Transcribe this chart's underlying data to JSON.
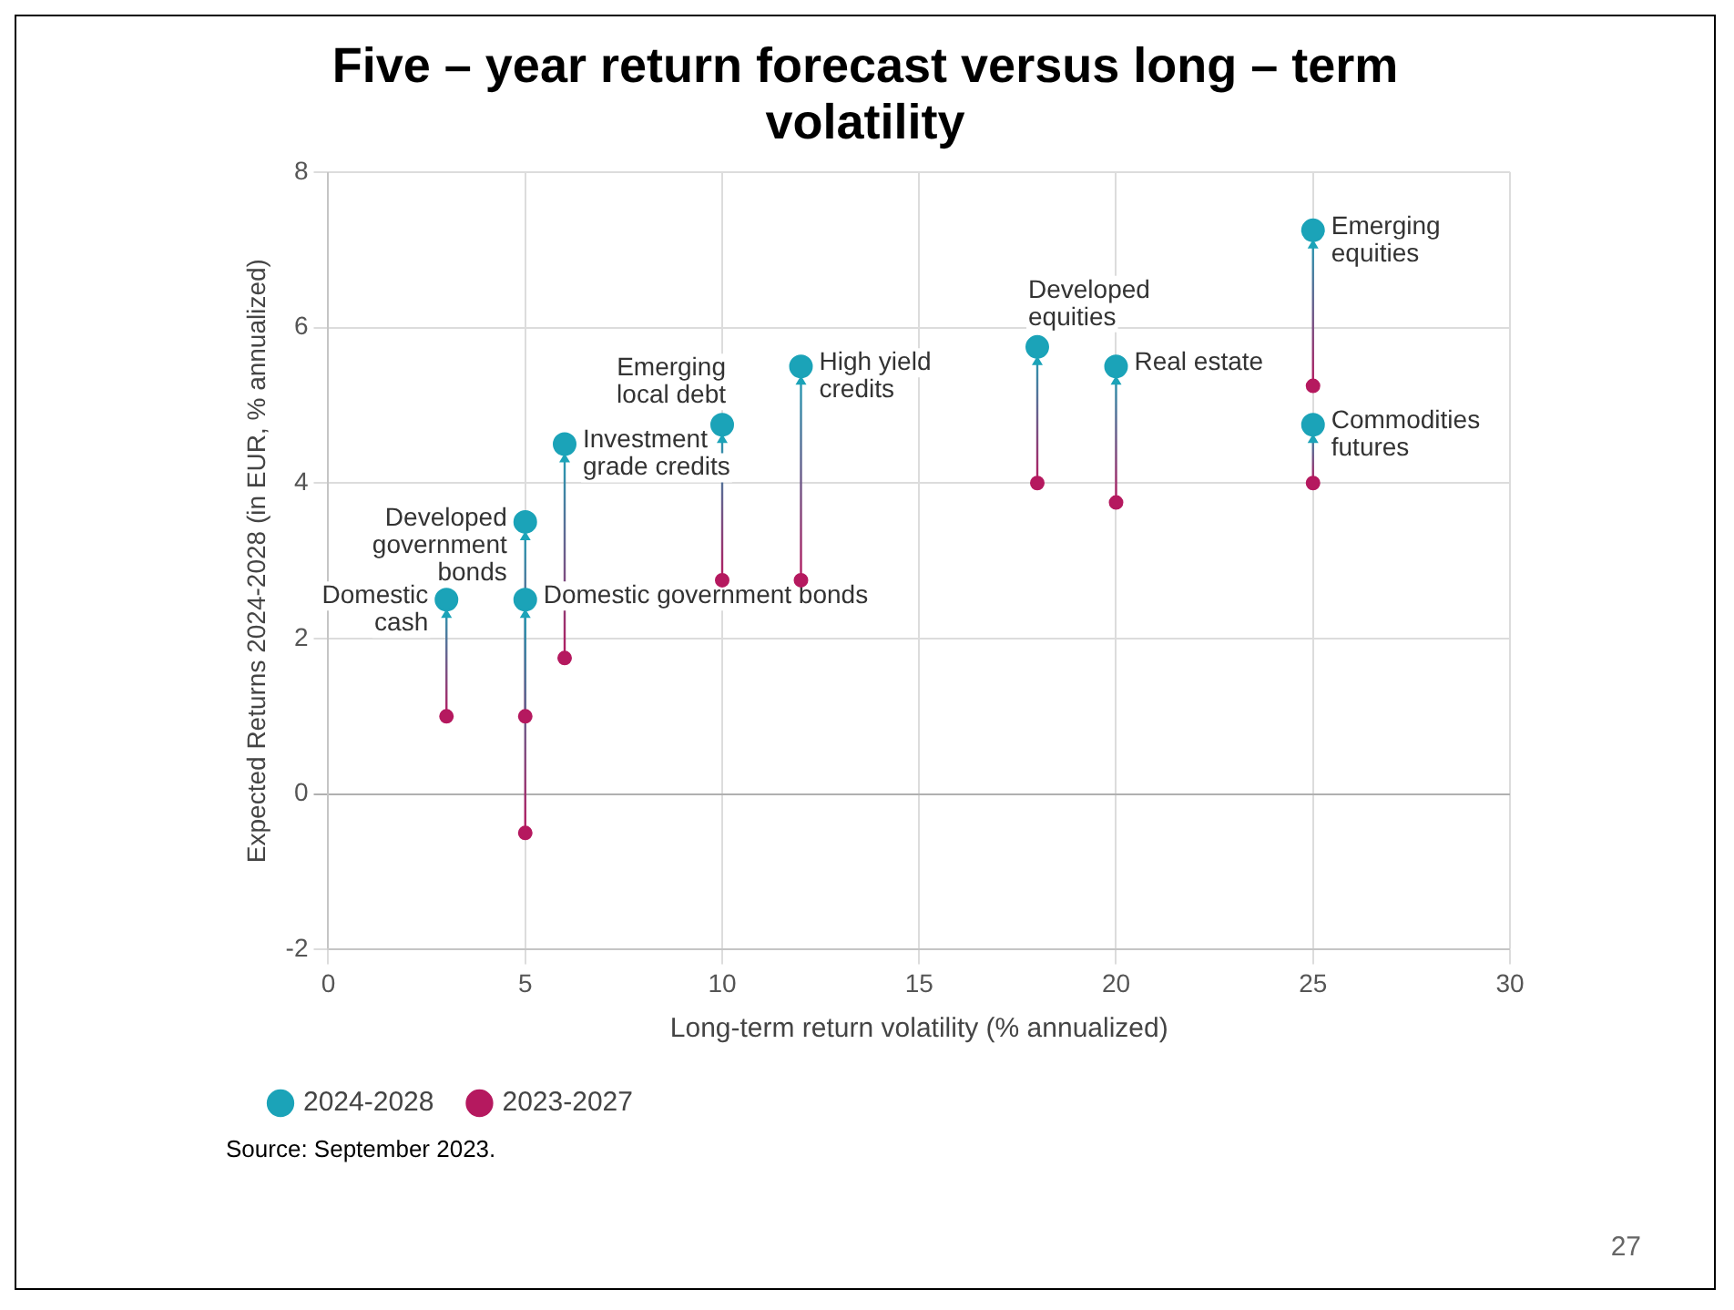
{
  "chart_data": {
    "type": "scatter",
    "title": "Five – year return forecast versus long – term volatility",
    "xlabel": "Long-term return volatility (% annualized)",
    "ylabel": "Expected Returns 2024-2028 (in EUR, % annualized)",
    "x": [
      3,
      5,
      5,
      6,
      10,
      12,
      18,
      20,
      25,
      25
    ],
    "series": [
      {
        "name": "2024-2028",
        "color": "#1ba3b8",
        "values": [
          2.5,
          3.5,
          2.5,
          4.5,
          4.75,
          5.5,
          5.75,
          5.5,
          7.25,
          4.75
        ]
      },
      {
        "name": "2023-2027",
        "color": "#b5195f",
        "values": [
          1,
          1,
          -0.5,
          1.75,
          2.75,
          2.75,
          4,
          3.75,
          5.25,
          4
        ]
      }
    ],
    "xlim": [
      0,
      30
    ],
    "xticks": [
      0,
      5,
      10,
      15,
      20,
      25,
      30
    ],
    "ylim": [
      -2,
      8
    ],
    "yticks": [
      -2,
      0,
      2,
      4,
      6,
      8
    ],
    "grid": true,
    "legend": "bottom left",
    "marker": "circle",
    "annotations": [
      {
        "text": "Domestic cash",
        "x": 3,
        "y": 2.5
      },
      {
        "text": "Developed government bonds",
        "x": 5,
        "y": 3.5
      },
      {
        "text": "Domestic government bonds",
        "x": 5,
        "y": 2.5
      },
      {
        "text": "Investment grade credits",
        "x": 6,
        "y": 4.5
      },
      {
        "text": "Emerging local debt",
        "x": 10,
        "y": 4.75
      },
      {
        "text": "High yield credits",
        "x": 12,
        "y": 5.5
      },
      {
        "text": "Developed equities",
        "x": 18,
        "y": 5.75
      },
      {
        "text": "Real estate",
        "x": 20,
        "y": 5.5
      },
      {
        "text": "Emerging equities",
        "x": 25,
        "y": 7.25
      },
      {
        "text": "Commodities futures",
        "x": 25,
        "y": 4.75
      },
      "Source: September 2023.",
      "27"
    ]
  }
}
